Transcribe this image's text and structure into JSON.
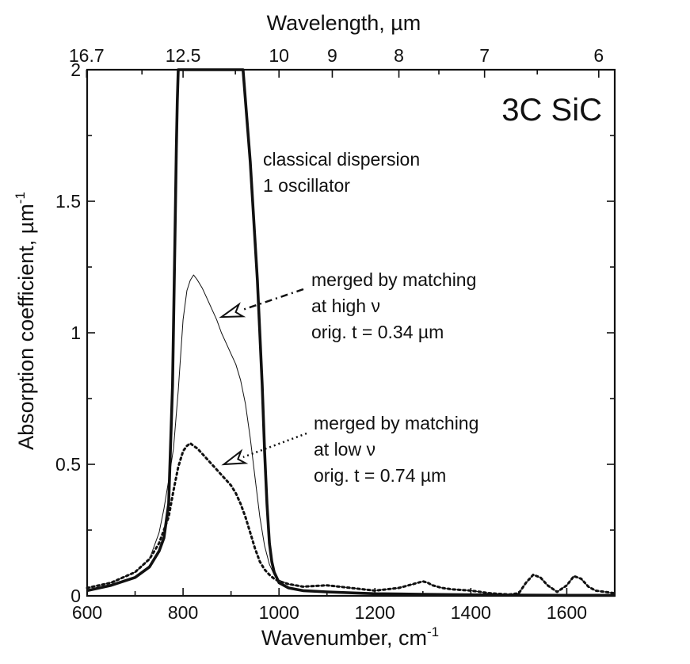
{
  "chart_data": {
    "type": "line",
    "sample_label": "3C SiC",
    "xlabel": "Wavenumber, cm",
    "xlabel_sup": "-1",
    "ylabel": "Absorption coefficient, µm",
    "ylabel_sup": "-1",
    "top_axis_label": "Wavelength, µm",
    "xlim": [
      600,
      1700
    ],
    "ylim": [
      0,
      2
    ],
    "x_ticks": [
      600,
      800,
      1000,
      1200,
      1400,
      1600
    ],
    "x_tick_labels": [
      "600",
      "800",
      "1000",
      "1200",
      "1400",
      "1600"
    ],
    "y_ticks": [
      0,
      0.5,
      1,
      1.5,
      2
    ],
    "y_tick_labels": [
      "0",
      "0.5",
      "1",
      "1.5",
      "2"
    ],
    "top_ticks_wavelength_um": [
      16.7,
      12.5,
      10,
      9,
      8,
      7,
      6
    ],
    "top_tick_labels": [
      "16.7",
      "12.5",
      "10",
      "9",
      "8",
      "7",
      "6"
    ],
    "top_minor_ticks_wavelength_um": [
      14,
      11,
      7.5,
      6.5
    ],
    "series": [
      {
        "name": "classical dispersion 1 oscillator",
        "style": "thick-solid",
        "x": [
          600,
          650,
          700,
          730,
          750,
          760,
          770,
          778,
          783,
          786,
          788,
          790,
          900,
          925,
          940,
          955,
          965,
          970,
          975,
          980,
          985,
          990,
          995,
          1000,
          1020,
          1050,
          1100,
          1200,
          1300,
          1400,
          1500,
          1600,
          1700
        ],
        "y": [
          0.02,
          0.04,
          0.07,
          0.11,
          0.17,
          0.22,
          0.35,
          0.8,
          1.35,
          1.7,
          1.88,
          2.0,
          2.0,
          2.0,
          1.65,
          1.2,
          0.8,
          0.55,
          0.35,
          0.2,
          0.13,
          0.09,
          0.07,
          0.05,
          0.03,
          0.02,
          0.015,
          0.008,
          0.006,
          0.004,
          0.003,
          0.002,
          0.002
        ]
      },
      {
        "name": "merged by matching at high ν",
        "style": "thin-solid",
        "x": [
          600,
          650,
          700,
          730,
          750,
          760,
          770,
          780,
          790,
          800,
          808,
          815,
          822,
          830,
          840,
          850,
          860,
          870,
          880,
          890,
          900,
          910,
          920,
          930,
          940,
          950,
          960,
          970,
          980,
          990,
          1000,
          1020,
          1050,
          1100,
          1150,
          1200,
          1250,
          1280,
          1300,
          1310,
          1320,
          1340,
          1360,
          1400,
          1420,
          1440,
          1480,
          1500,
          1515,
          1530,
          1545,
          1560,
          1580,
          1600,
          1615,
          1630,
          1645,
          1660,
          1680,
          1700
        ],
        "y": [
          0.03,
          0.05,
          0.09,
          0.14,
          0.24,
          0.33,
          0.44,
          0.56,
          0.78,
          1.05,
          1.16,
          1.2,
          1.22,
          1.2,
          1.17,
          1.13,
          1.09,
          1.05,
          1.0,
          0.96,
          0.92,
          0.88,
          0.82,
          0.73,
          0.6,
          0.45,
          0.3,
          0.19,
          0.12,
          0.08,
          0.06,
          0.045,
          0.035,
          0.04,
          0.03,
          0.02,
          0.03,
          0.045,
          0.055,
          0.05,
          0.04,
          0.03,
          0.025,
          0.02,
          0.015,
          0.01,
          0.005,
          0.01,
          0.05,
          0.08,
          0.07,
          0.04,
          0.015,
          0.04,
          0.075,
          0.065,
          0.035,
          0.02,
          0.015,
          0.01
        ]
      },
      {
        "name": "merged by matching at low ν",
        "style": "dotted",
        "x": [
          600,
          650,
          700,
          730,
          750,
          760,
          770,
          780,
          790,
          800,
          808,
          815,
          822,
          830,
          840,
          850,
          860,
          870,
          880,
          890,
          900,
          910,
          920,
          930,
          940,
          950,
          960,
          970,
          980,
          990,
          1000,
          1020,
          1050,
          1100,
          1150,
          1200,
          1250,
          1280,
          1300,
          1310,
          1320,
          1340,
          1360,
          1400,
          1420,
          1440,
          1480,
          1500,
          1515,
          1530,
          1545,
          1560,
          1580,
          1600,
          1615,
          1630,
          1645,
          1660,
          1680,
          1700
        ],
        "y": [
          0.03,
          0.05,
          0.09,
          0.14,
          0.2,
          0.25,
          0.3,
          0.4,
          0.49,
          0.55,
          0.57,
          0.58,
          0.57,
          0.56,
          0.54,
          0.52,
          0.5,
          0.48,
          0.46,
          0.44,
          0.42,
          0.39,
          0.35,
          0.3,
          0.24,
          0.18,
          0.13,
          0.1,
          0.08,
          0.065,
          0.055,
          0.045,
          0.035,
          0.04,
          0.03,
          0.02,
          0.03,
          0.045,
          0.055,
          0.05,
          0.04,
          0.03,
          0.025,
          0.02,
          0.015,
          0.01,
          0.005,
          0.01,
          0.05,
          0.08,
          0.07,
          0.04,
          0.015,
          0.04,
          0.075,
          0.065,
          0.035,
          0.02,
          0.015,
          0.01
        ]
      }
    ],
    "annotations": [
      {
        "id": "classical",
        "lines": [
          "classical dispersion",
          "1 oscillator"
        ]
      },
      {
        "id": "high",
        "lines": [
          "merged by matching",
          "at high ν",
          "orig. t = 0.34 µm"
        ],
        "arrow_style": "dash-dot",
        "points_to": {
          "x": 880,
          "y": 1.06
        }
      },
      {
        "id": "low",
        "lines": [
          "merged by matching",
          "at low ν",
          "orig. t = 0.74 µm"
        ],
        "arrow_style": "dotted",
        "points_to": {
          "x": 885,
          "y": 0.5
        }
      }
    ]
  }
}
